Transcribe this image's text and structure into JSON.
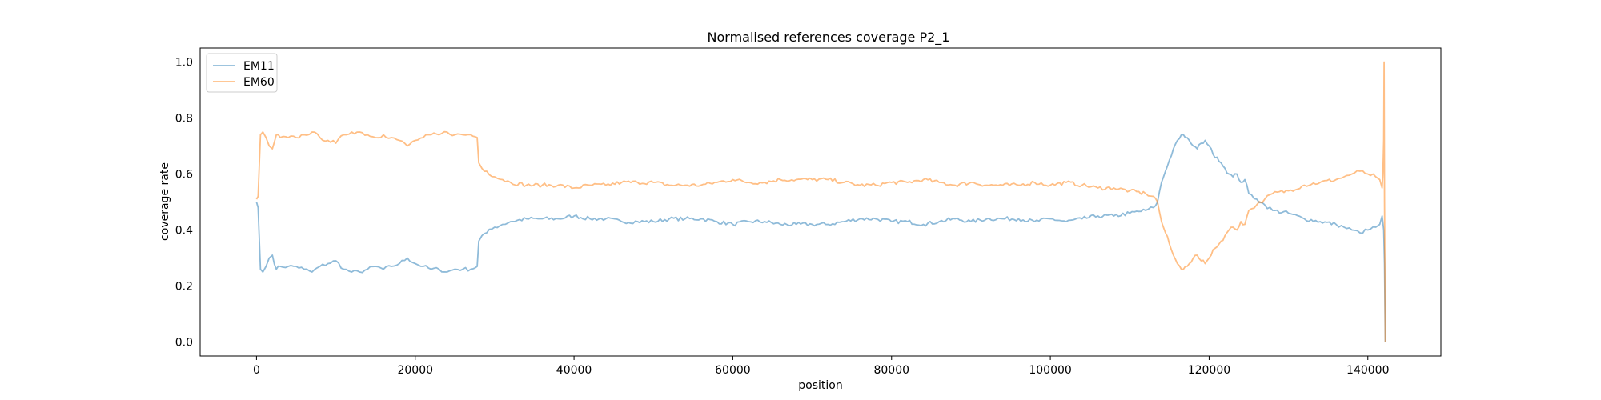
{
  "chart_data": {
    "type": "line",
    "title": "Normalised references coverage P2_1",
    "xlabel": "position",
    "ylabel": "coverage rate",
    "xlim": [
      -7100,
      149200
    ],
    "ylim": [
      -0.05,
      1.05
    ],
    "xticks": [
      0,
      20000,
      40000,
      60000,
      80000,
      100000,
      120000,
      140000
    ],
    "xtick_labels": [
      "0",
      "20000",
      "40000",
      "60000",
      "80000",
      "100000",
      "120000",
      "140000"
    ],
    "yticks": [
      0.0,
      0.2,
      0.4,
      0.6,
      0.8,
      1.0
    ],
    "ytick_labels": [
      "0.0",
      "0.2",
      "0.4",
      "0.6",
      "0.8",
      "1.0"
    ],
    "grid": false,
    "legend": "upper left",
    "series": [
      {
        "name": "EM11",
        "color": "#1f77b4",
        "alpha": 0.5,
        "x": [
          0,
          200,
          500,
          800,
          1200,
          1600,
          2000,
          2500,
          3000,
          4000,
          5000,
          6000,
          7000,
          8000,
          9000,
          10000,
          11000,
          12000,
          13000,
          14000,
          15000,
          16000,
          17000,
          18000,
          19000,
          20000,
          21000,
          22000,
          23000,
          24000,
          25000,
          26000,
          27000,
          27800,
          28000,
          28400,
          29000,
          30000,
          31000,
          32000,
          34000,
          36000,
          38000,
          40000,
          42000,
          44000,
          46000,
          48000,
          50000,
          52000,
          54000,
          56000,
          58000,
          60000,
          62000,
          64000,
          66000,
          68000,
          70000,
          72000,
          74000,
          76000,
          78000,
          80000,
          82000,
          84000,
          86000,
          88000,
          90000,
          92000,
          94000,
          96000,
          98000,
          100000,
          102000,
          104000,
          106000,
          108000,
          110000,
          112000,
          113000,
          113500,
          114000,
          114500,
          115000,
          115500,
          116000,
          116500,
          117000,
          117500,
          118000,
          118500,
          119000,
          119500,
          120000,
          120500,
          121000,
          121500,
          122000,
          122500,
          123000,
          123500,
          124000,
          124500,
          125000,
          126000,
          127000,
          128000,
          130000,
          132000,
          134000,
          136000,
          137000,
          138000,
          139000,
          140000,
          141000,
          141500,
          141800,
          142000,
          142100,
          142200
        ],
        "y": [
          0.5,
          0.48,
          0.26,
          0.25,
          0.27,
          0.3,
          0.31,
          0.26,
          0.27,
          0.27,
          0.27,
          0.26,
          0.25,
          0.27,
          0.28,
          0.29,
          0.26,
          0.25,
          0.25,
          0.26,
          0.27,
          0.26,
          0.27,
          0.28,
          0.3,
          0.28,
          0.27,
          0.26,
          0.26,
          0.25,
          0.26,
          0.26,
          0.26,
          0.27,
          0.36,
          0.38,
          0.39,
          0.41,
          0.42,
          0.43,
          0.44,
          0.44,
          0.44,
          0.45,
          0.44,
          0.44,
          0.43,
          0.43,
          0.43,
          0.44,
          0.44,
          0.44,
          0.43,
          0.42,
          0.43,
          0.43,
          0.42,
          0.42,
          0.42,
          0.42,
          0.43,
          0.44,
          0.44,
          0.43,
          0.43,
          0.42,
          0.43,
          0.44,
          0.43,
          0.44,
          0.44,
          0.44,
          0.43,
          0.44,
          0.43,
          0.44,
          0.45,
          0.45,
          0.46,
          0.47,
          0.48,
          0.5,
          0.57,
          0.61,
          0.65,
          0.69,
          0.72,
          0.74,
          0.73,
          0.72,
          0.7,
          0.69,
          0.71,
          0.72,
          0.7,
          0.67,
          0.66,
          0.64,
          0.62,
          0.6,
          0.59,
          0.6,
          0.57,
          0.58,
          0.53,
          0.51,
          0.49,
          0.47,
          0.46,
          0.44,
          0.43,
          0.42,
          0.41,
          0.4,
          0.39,
          0.4,
          0.41,
          0.42,
          0.45,
          0.4,
          0.28,
          0.0
        ],
        "pieces": []
      },
      {
        "name": "EM60",
        "color": "#ff7f0e",
        "alpha": 0.5,
        "x": [
          0,
          200,
          500,
          800,
          1200,
          1600,
          2000,
          2500,
          3000,
          4000,
          5000,
          6000,
          7000,
          8000,
          9000,
          10000,
          11000,
          12000,
          13000,
          14000,
          15000,
          16000,
          17000,
          18000,
          19000,
          20000,
          21000,
          22000,
          23000,
          24000,
          25000,
          26000,
          27000,
          27800,
          28000,
          28400,
          29000,
          30000,
          31000,
          32000,
          34000,
          36000,
          38000,
          40000,
          42000,
          44000,
          46000,
          48000,
          50000,
          52000,
          54000,
          56000,
          58000,
          60000,
          62000,
          64000,
          66000,
          68000,
          70000,
          72000,
          74000,
          76000,
          78000,
          80000,
          82000,
          84000,
          86000,
          88000,
          90000,
          92000,
          94000,
          96000,
          98000,
          100000,
          102000,
          104000,
          106000,
          108000,
          110000,
          112000,
          113000,
          113500,
          114000,
          114500,
          115000,
          115500,
          116000,
          116500,
          117000,
          117500,
          118000,
          118500,
          119000,
          119500,
          120000,
          120500,
          121000,
          121500,
          122000,
          122500,
          123000,
          123500,
          124000,
          124500,
          125000,
          126000,
          127000,
          128000,
          130000,
          132000,
          134000,
          136000,
          137000,
          138000,
          139000,
          140000,
          141000,
          141500,
          141800,
          141900,
          142000,
          142050,
          142100,
          142200
        ],
        "y": [
          0.51,
          0.52,
          0.74,
          0.75,
          0.73,
          0.7,
          0.69,
          0.74,
          0.73,
          0.73,
          0.73,
          0.74,
          0.75,
          0.73,
          0.72,
          0.71,
          0.74,
          0.75,
          0.75,
          0.74,
          0.73,
          0.74,
          0.73,
          0.72,
          0.7,
          0.72,
          0.73,
          0.74,
          0.74,
          0.75,
          0.74,
          0.74,
          0.74,
          0.73,
          0.64,
          0.62,
          0.61,
          0.59,
          0.58,
          0.57,
          0.56,
          0.56,
          0.56,
          0.55,
          0.56,
          0.56,
          0.57,
          0.57,
          0.57,
          0.56,
          0.56,
          0.56,
          0.57,
          0.58,
          0.57,
          0.57,
          0.58,
          0.58,
          0.58,
          0.58,
          0.57,
          0.56,
          0.56,
          0.57,
          0.57,
          0.58,
          0.57,
          0.56,
          0.57,
          0.56,
          0.56,
          0.56,
          0.57,
          0.56,
          0.57,
          0.56,
          0.55,
          0.55,
          0.54,
          0.53,
          0.52,
          0.5,
          0.43,
          0.39,
          0.35,
          0.31,
          0.28,
          0.26,
          0.27,
          0.28,
          0.3,
          0.31,
          0.29,
          0.28,
          0.3,
          0.33,
          0.34,
          0.36,
          0.38,
          0.4,
          0.41,
          0.4,
          0.43,
          0.42,
          0.47,
          0.49,
          0.51,
          0.53,
          0.54,
          0.56,
          0.57,
          0.58,
          0.59,
          0.6,
          0.61,
          0.6,
          0.59,
          0.58,
          0.55,
          0.6,
          0.72,
          1.0,
          0.5,
          0.0
        ],
        "pieces": []
      }
    ]
  }
}
